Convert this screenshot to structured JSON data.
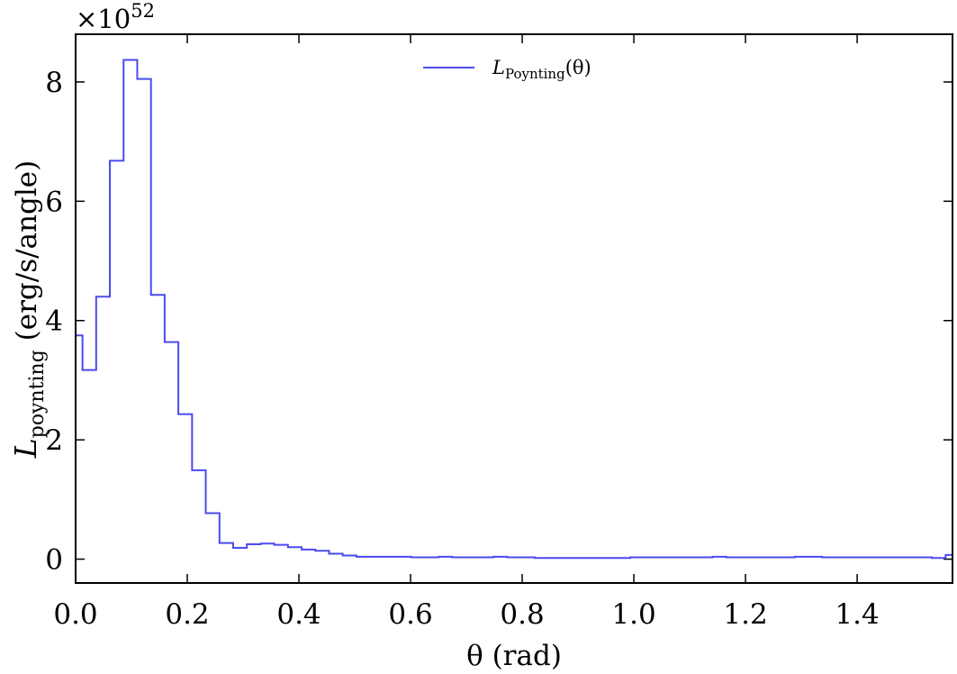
{
  "chart_data": {
    "type": "line",
    "drawstyle": "steps-post",
    "xlabel": "θ (rad)",
    "ylabel": "L_poynting (erg/s/angle)",
    "ylabel_main": "L",
    "ylabel_sub": "poynting",
    "ylabel_rest": " (erg/s/angle)",
    "scale_prefix": "×10",
    "scale_exponent": "52",
    "xlim": [
      0.0,
      1.5708
    ],
    "ylim": [
      -0.4,
      8.8
    ],
    "xticks": [
      0.0,
      0.2,
      0.4,
      0.6,
      0.8,
      1.0,
      1.2,
      1.4
    ],
    "xtick_labels": [
      "0.0",
      "0.2",
      "0.4",
      "0.6",
      "0.8",
      "1.0",
      "1.2",
      "1.4"
    ],
    "yticks": [
      0,
      2,
      4,
      6,
      8
    ],
    "ytick_labels": [
      "0",
      "2",
      "4",
      "6",
      "8"
    ],
    "legend_position": "top-center",
    "grid": false,
    "series": [
      {
        "name": "L_Poynting(θ)",
        "name_main": "L",
        "name_sub": "Poynting",
        "name_rest": "(θ)",
        "color": "#4b4bf0",
        "x": [
          0.0,
          0.0123,
          0.0368,
          0.0613,
          0.0859,
          0.1104,
          0.135,
          0.1595,
          0.184,
          0.2086,
          0.2331,
          0.2577,
          0.2822,
          0.3067,
          0.3313,
          0.3558,
          0.3803,
          0.4049,
          0.4294,
          0.454,
          0.4785,
          0.503,
          0.5276,
          0.5521,
          0.5767,
          0.6012,
          0.6257,
          0.6503,
          0.6748,
          0.6994,
          0.7239,
          0.7484,
          0.773,
          0.7975,
          0.8221,
          0.8466,
          0.8711,
          0.8957,
          0.9202,
          0.9448,
          0.9693,
          0.9938,
          1.0184,
          1.0429,
          1.0674,
          1.092,
          1.1165,
          1.1411,
          1.1656,
          1.1901,
          1.2147,
          1.2392,
          1.2638,
          1.2883,
          1.3128,
          1.3374,
          1.3619,
          1.3865,
          1.411,
          1.4355,
          1.4601,
          1.4846,
          1.5092,
          1.5337,
          1.5585
        ],
        "y": [
          3.75,
          3.17,
          4.4,
          6.68,
          8.37,
          8.05,
          4.43,
          3.64,
          2.43,
          1.49,
          0.77,
          0.27,
          0.19,
          0.25,
          0.26,
          0.24,
          0.2,
          0.16,
          0.14,
          0.09,
          0.06,
          0.04,
          0.04,
          0.04,
          0.04,
          0.03,
          0.03,
          0.04,
          0.03,
          0.03,
          0.03,
          0.04,
          0.03,
          0.03,
          0.02,
          0.02,
          0.02,
          0.02,
          0.02,
          0.02,
          0.02,
          0.03,
          0.03,
          0.03,
          0.03,
          0.03,
          0.03,
          0.04,
          0.03,
          0.03,
          0.03,
          0.03,
          0.03,
          0.04,
          0.04,
          0.03,
          0.03,
          0.03,
          0.03,
          0.03,
          0.03,
          0.03,
          0.03,
          0.02,
          0.07
        ]
      }
    ]
  }
}
